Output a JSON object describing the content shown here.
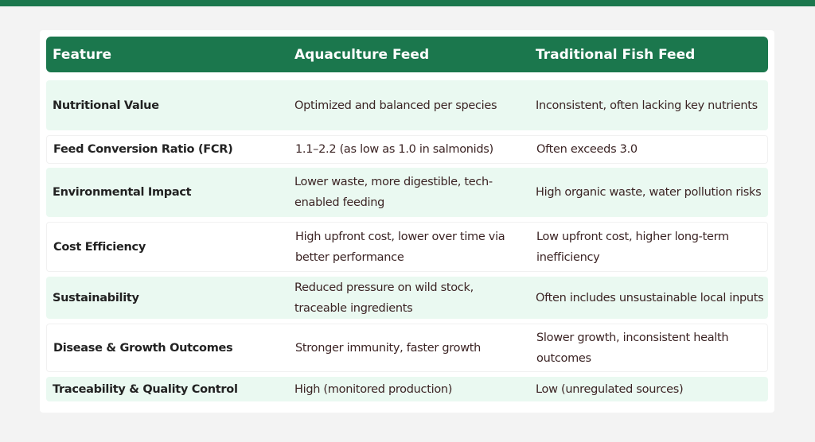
{
  "colors": {
    "header": "#1b774d",
    "row_alt": "#eaf9f1",
    "background": "#f3f3f3"
  },
  "table": {
    "headers": [
      "Feature",
      "Aquaculture Feed",
      "Traditional Fish Feed"
    ],
    "rows": [
      [
        "Nutritional Value",
        "Optimized and balanced per species",
        "Inconsistent, often lacking key nutrients"
      ],
      [
        "Feed Conversion Ratio (FCR)",
        "1.1–2.2 (as low as 1.0 in salmonids)",
        "Often exceeds 3.0"
      ],
      [
        "Environmental Impact",
        "Lower waste, more digestible, tech-enabled feeding",
        "High organic waste, water pollution risks"
      ],
      [
        "Cost Efficiency",
        "High upfront cost, lower over time via better performance",
        "Low upfront cost, higher long-term inefficiency"
      ],
      [
        "Sustainability",
        "Reduced pressure on wild stock, traceable ingredients",
        "Often includes unsustainable local inputs"
      ],
      [
        "Disease & Growth Outcomes",
        "Stronger immunity, faster growth",
        "Slower growth, inconsistent health outcomes"
      ],
      [
        "Traceability & Quality Control",
        "High (monitored production)",
        "Low (unregulated sources)"
      ]
    ]
  }
}
